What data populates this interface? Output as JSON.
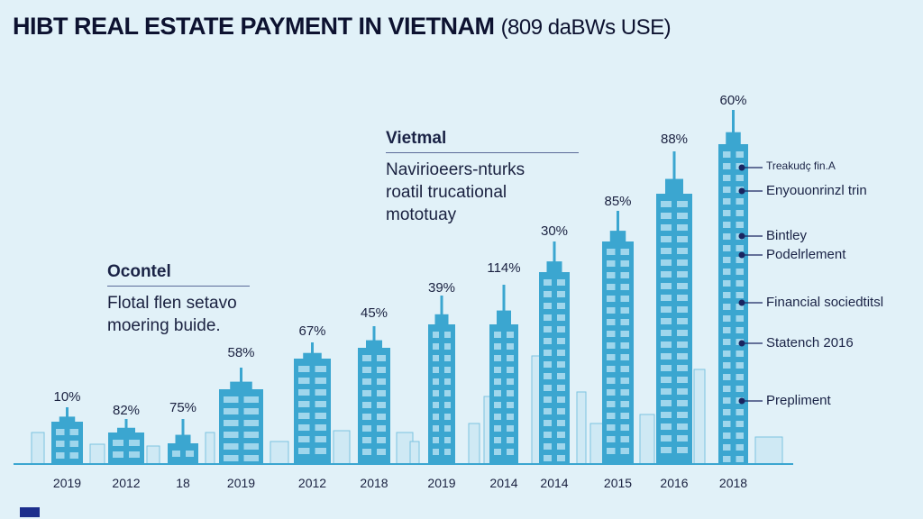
{
  "title": {
    "main": "HIBT REAL ESTATE PAYMENT IN VIETNAM",
    "sub": "(809 daBWs USE)"
  },
  "notes": [
    {
      "heading": "Vietmal",
      "body": [
        "Navirioeers-nturks",
        "roatil trucational",
        "mototuay"
      ]
    },
    {
      "heading": "Ocontel",
      "body": [
        "Flotal flen setavo",
        "moering buide."
      ]
    }
  ],
  "callouts": [
    "Treakudç fin.A",
    "Enyouonrinzl trin",
    "Bintley",
    "Podelrlement",
    "Financial sociedtitsl",
    "Statench 2016",
    "Prepliment"
  ],
  "colors": {
    "background": "#e1f1f8",
    "building": "#3ba6d0",
    "window": "#9fd6ec",
    "text": "#1a2140"
  },
  "chart_data": {
    "type": "bar",
    "title": "HIBT REAL ESTATE PAYMENT IN VIETNAM (809 daBWs USE)",
    "categories": [
      "2019",
      "2012",
      "18",
      "2019",
      "2012",
      "2018",
      "2019",
      "2014",
      "2014",
      "2015",
      "2016",
      "2018"
    ],
    "values": [
      10,
      82,
      75,
      58,
      67,
      45,
      39,
      114,
      30,
      85,
      88,
      60
    ],
    "labels": [
      "10%",
      "82%",
      "75%",
      "58%",
      "67%",
      "45%",
      "39%",
      "114%",
      "30%",
      "85%",
      "88%",
      "60%"
    ],
    "xlabel": "",
    "ylabel": "",
    "grid": false,
    "legend": "none"
  }
}
